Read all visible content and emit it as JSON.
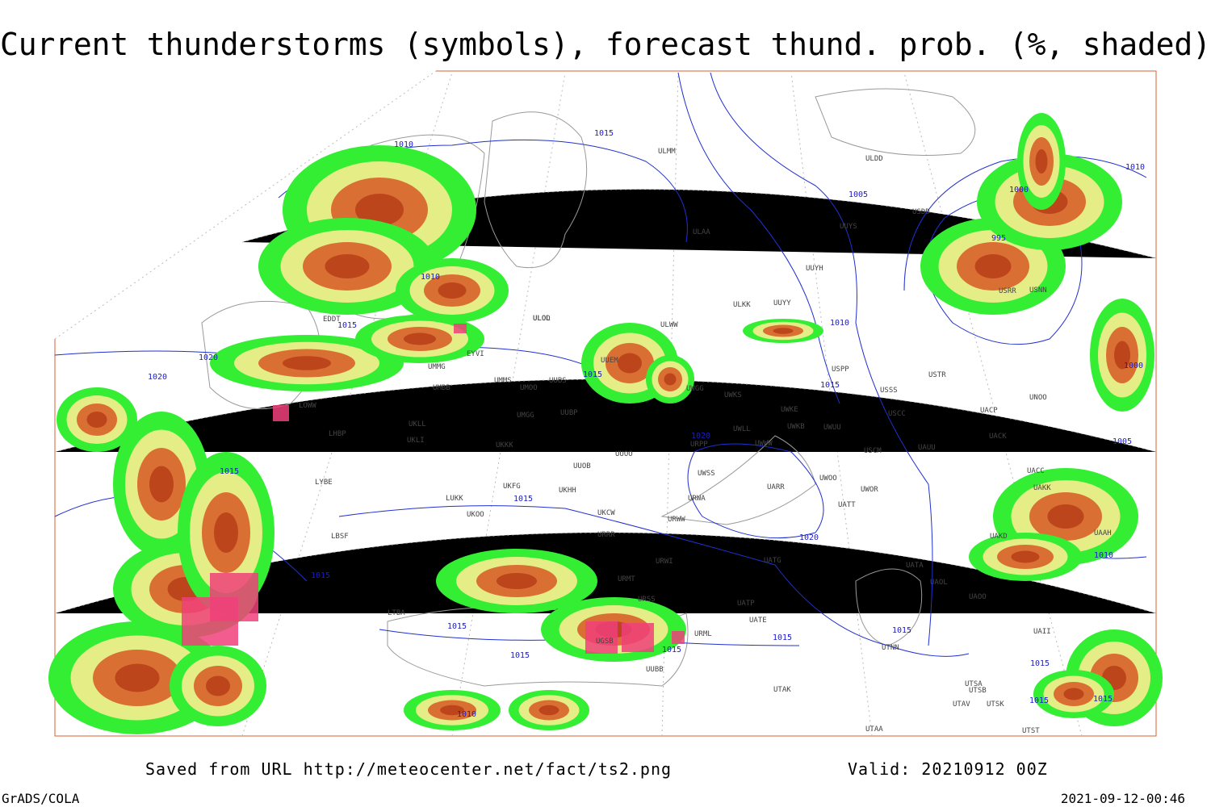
{
  "header": {
    "title": "Current thunderstorms (symbols), forecast thund. prob. (%, shaded)"
  },
  "footer": {
    "source": "Saved from URL http://meteocenter.net/fact/ts2.png",
    "valid": "Valid: 20210912 00Z",
    "software": "GrADS/COLA",
    "timestamp": "2021-09-12-00:46"
  },
  "isobar_labels": [
    "1010",
    "1015",
    "1005",
    "1010",
    "1000",
    "995",
    "1010",
    "1015",
    "1020",
    "1020",
    "1010",
    "1015",
    "1015",
    "1000",
    "1020",
    "1005",
    "1015",
    "1015",
    "1020",
    "1010",
    "1015",
    "1015",
    "1015",
    "1015",
    "1015",
    "1015",
    "1010",
    "1015",
    "1015",
    "1015"
  ],
  "stations": [
    "ULMM",
    "ULDD",
    "USDD",
    "ULAA",
    "UUYS",
    "UUYH",
    "ULOL",
    "ULWW",
    "ULKK",
    "UUYY",
    "EYVI",
    "UMMG",
    "UUEM",
    "UMMS",
    "UMOO",
    "UUBS",
    "UMBB",
    "UWGG",
    "UWKS",
    "UWKE",
    "USPP",
    "USSS",
    "USTR",
    "USCC",
    "UKLL",
    "UMGG",
    "UUBP",
    "UKLI",
    "UWLL",
    "UWKB",
    "UWUU",
    "UKKK",
    "UUOO",
    "URPP",
    "UWWW",
    "USCM",
    "UAUU",
    "UUOB",
    "UWSS",
    "UWOO",
    "UWOR",
    "UARR",
    "LUKK",
    "UKHH",
    "UKFG",
    "UKOO",
    "UKCW",
    "URWA",
    "UATT",
    "LBSF",
    "URRR",
    "URWW",
    "UATG",
    "URWI",
    "URMT",
    "URSS",
    "UATP",
    "UATE",
    "URML",
    "UTAA",
    "UTAK",
    "UTNN",
    "UAOL",
    "UAOO",
    "UATA",
    "UAKD",
    "UAAH",
    "UAKK",
    "UACC",
    "UACK",
    "UACP",
    "UNOO",
    "USNN",
    "USRR",
    "LTBA",
    "LYBE",
    "LHBP",
    "LOWW",
    "EDDT",
    "ULOD",
    "UUBB",
    "UGSB",
    "UTSA",
    "UTSB",
    "UTAV",
    "UTSK",
    "UTST",
    "UAII"
  ]
}
